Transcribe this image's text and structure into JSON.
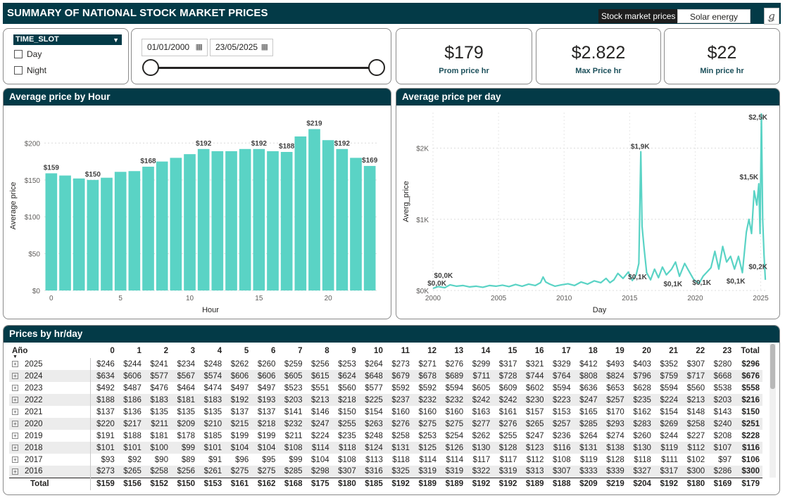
{
  "header": {
    "title": "SUMMARY OF NATIONAL STOCK MARKET PRICES",
    "nav_active": "Stock market prices",
    "nav_inactive": "Solar energy",
    "logo_glyph": "ǥ"
  },
  "slicer": {
    "title": "TIME_SLOT",
    "options": [
      "Day",
      "Night"
    ]
  },
  "date_range": {
    "start": "01/01/2000",
    "end": "23/05/2025"
  },
  "kpis": [
    {
      "value": "$179",
      "label": "Prom price hr"
    },
    {
      "value": "$2.822",
      "label": "Max Price hr"
    },
    {
      "value": "$22",
      "label": "Min price hr"
    }
  ],
  "colors": {
    "accent": "#5ad3c5",
    "header": "#033a47"
  },
  "charts": [
    {
      "panel_title": "Average price by Hour",
      "type": "bar",
      "xlabel": "Hour",
      "ylabel": "Average price",
      "x": [
        0,
        1,
        2,
        3,
        4,
        5,
        6,
        7,
        8,
        9,
        10,
        11,
        12,
        13,
        14,
        15,
        16,
        17,
        18,
        19,
        20,
        21,
        22,
        23
      ],
      "values": [
        159,
        156,
        152,
        150,
        153,
        161,
        162,
        168,
        175,
        180,
        185,
        192,
        189,
        189,
        192,
        192,
        189,
        188,
        209,
        219,
        204,
        192,
        180,
        169
      ],
      "data_labels": {
        "0": "$159",
        "3": "$150",
        "7": "$168",
        "11": "$192",
        "15": "$192",
        "17": "$188",
        "19": "$219",
        "21": "$192",
        "23": "$169"
      },
      "x_ticks": [
        "0",
        "5",
        "10",
        "15",
        "20"
      ],
      "y_ticks": [
        "$0",
        "$50",
        "$100",
        "$150",
        "$200"
      ],
      "ylim": [
        0,
        230
      ]
    },
    {
      "panel_title": "Average price per day",
      "type": "line",
      "xlabel": "Day",
      "ylabel": "Averg_price",
      "x_ticks": [
        "2000",
        "2005",
        "2010",
        "2015",
        "2020",
        "2025"
      ],
      "y_ticks": [
        "$0K",
        "$1K",
        "$2K"
      ],
      "xlim": [
        2000,
        2025.4
      ],
      "ylim": [
        0,
        2500
      ],
      "points": [
        [
          2000.0,
          30
        ],
        [
          2000.4,
          55
        ],
        [
          2000.9,
          40
        ],
        [
          2001.3,
          80
        ],
        [
          2001.8,
          60
        ],
        [
          2002.3,
          70
        ],
        [
          2002.8,
          50
        ],
        [
          2003.3,
          60
        ],
        [
          2003.8,
          45
        ],
        [
          2004.3,
          70
        ],
        [
          2004.8,
          60
        ],
        [
          2005.3,
          75
        ],
        [
          2005.8,
          55
        ],
        [
          2006.3,
          85
        ],
        [
          2006.8,
          60
        ],
        [
          2007.3,
          90
        ],
        [
          2007.8,
          70
        ],
        [
          2008.2,
          110
        ],
        [
          2008.4,
          190
        ],
        [
          2008.6,
          120
        ],
        [
          2008.9,
          90
        ],
        [
          2009.3,
          60
        ],
        [
          2009.8,
          80
        ],
        [
          2010.3,
          95
        ],
        [
          2010.8,
          70
        ],
        [
          2011.3,
          120
        ],
        [
          2011.8,
          90
        ],
        [
          2012.3,
          135
        ],
        [
          2012.8,
          110
        ],
        [
          2013.2,
          170
        ],
        [
          2013.5,
          110
        ],
        [
          2013.8,
          150
        ],
        [
          2014.1,
          240
        ],
        [
          2014.5,
          170
        ],
        [
          2014.9,
          260
        ],
        [
          2015.2,
          140
        ],
        [
          2015.5,
          220
        ],
        [
          2015.7,
          380
        ],
        [
          2015.85,
          1950
        ],
        [
          2015.95,
          900
        ],
        [
          2016.1,
          600
        ],
        [
          2016.3,
          250
        ],
        [
          2016.6,
          150
        ],
        [
          2016.9,
          300
        ],
        [
          2017.2,
          180
        ],
        [
          2017.5,
          330
        ],
        [
          2017.8,
          220
        ],
        [
          2018.2,
          300
        ],
        [
          2018.5,
          400
        ],
        [
          2018.8,
          200
        ],
        [
          2019.2,
          380
        ],
        [
          2019.5,
          280
        ],
        [
          2019.9,
          150
        ],
        [
          2020.3,
          100
        ],
        [
          2020.6,
          200
        ],
        [
          2020.9,
          260
        ],
        [
          2021.2,
          320
        ],
        [
          2021.5,
          550
        ],
        [
          2021.8,
          300
        ],
        [
          2022.1,
          620
        ],
        [
          2022.4,
          400
        ],
        [
          2022.7,
          480
        ],
        [
          2023.0,
          300
        ],
        [
          2023.3,
          480
        ],
        [
          2023.6,
          250
        ],
        [
          2023.9,
          820
        ],
        [
          2024.1,
          1000
        ],
        [
          2024.3,
          800
        ],
        [
          2024.5,
          1400
        ],
        [
          2024.7,
          1200
        ],
        [
          2024.85,
          1500
        ],
        [
          2024.95,
          800
        ],
        [
          2025.05,
          2480
        ],
        [
          2025.15,
          1000
        ],
        [
          2025.25,
          500
        ],
        [
          2025.35,
          150
        ]
      ],
      "annotations": [
        {
          "x": 2000.3,
          "y": 30,
          "text": "$0,0K"
        },
        {
          "x": 2000.8,
          "y": 140,
          "text": "$0,0K"
        },
        {
          "x": 2015.8,
          "y": 1950,
          "text": "$1,9K"
        },
        {
          "x": 2015.6,
          "y": 120,
          "text": "$0,1K"
        },
        {
          "x": 2018.3,
          "y": 20,
          "text": "$0,1K"
        },
        {
          "x": 2020.5,
          "y": 40,
          "text": "$0,1K"
        },
        {
          "x": 2023.1,
          "y": 60,
          "text": "$0,1K"
        },
        {
          "x": 2024.1,
          "y": 1520,
          "text": "$1,5K"
        },
        {
          "x": 2025.0,
          "y": 2360,
          "text": "$2,5K"
        },
        {
          "x": 2025.2,
          "y": 260,
          "text": "$0,2K"
        }
      ]
    }
  ],
  "table": {
    "panel_title": "Prices by hr/day",
    "row_header": "Año",
    "columns": [
      "0",
      "1",
      "2",
      "3",
      "4",
      "5",
      "6",
      "7",
      "8",
      "9",
      "10",
      "11",
      "12",
      "13",
      "14",
      "15",
      "16",
      "17",
      "18",
      "19",
      "20",
      "21",
      "22",
      "23",
      "Total"
    ],
    "rows": [
      {
        "year": "2025",
        "values": [
          "$246",
          "$244",
          "$241",
          "$234",
          "$248",
          "$262",
          "$260",
          "$259",
          "$256",
          "$253",
          "$264",
          "$273",
          "$271",
          "$276",
          "$299",
          "$317",
          "$321",
          "$329",
          "$412",
          "$493",
          "$403",
          "$352",
          "$307",
          "$280",
          "$296"
        ]
      },
      {
        "year": "2024",
        "values": [
          "$634",
          "$606",
          "$577",
          "$567",
          "$574",
          "$606",
          "$606",
          "$605",
          "$615",
          "$624",
          "$648",
          "$679",
          "$678",
          "$689",
          "$711",
          "$728",
          "$744",
          "$764",
          "$808",
          "$824",
          "$796",
          "$759",
          "$717",
          "$668",
          "$676"
        ]
      },
      {
        "year": "2023",
        "values": [
          "$492",
          "$487",
          "$476",
          "$464",
          "$474",
          "$497",
          "$497",
          "$523",
          "$551",
          "$560",
          "$577",
          "$592",
          "$592",
          "$594",
          "$605",
          "$609",
          "$602",
          "$594",
          "$636",
          "$653",
          "$628",
          "$594",
          "$560",
          "$538",
          "$558"
        ]
      },
      {
        "year": "2022",
        "values": [
          "$188",
          "$186",
          "$183",
          "$181",
          "$183",
          "$192",
          "$193",
          "$203",
          "$213",
          "$218",
          "$225",
          "$237",
          "$232",
          "$232",
          "$242",
          "$242",
          "$230",
          "$223",
          "$247",
          "$257",
          "$235",
          "$224",
          "$213",
          "$203",
          "$216"
        ]
      },
      {
        "year": "2021",
        "values": [
          "$137",
          "$136",
          "$135",
          "$135",
          "$135",
          "$137",
          "$137",
          "$141",
          "$146",
          "$150",
          "$154",
          "$160",
          "$160",
          "$160",
          "$163",
          "$161",
          "$157",
          "$153",
          "$165",
          "$170",
          "$162",
          "$154",
          "$148",
          "$143",
          "$150"
        ]
      },
      {
        "year": "2020",
        "values": [
          "$220",
          "$217",
          "$211",
          "$209",
          "$210",
          "$215",
          "$218",
          "$232",
          "$247",
          "$255",
          "$263",
          "$276",
          "$275",
          "$275",
          "$277",
          "$276",
          "$265",
          "$257",
          "$285",
          "$293",
          "$283",
          "$269",
          "$258",
          "$240",
          "$251"
        ]
      },
      {
        "year": "2019",
        "values": [
          "$191",
          "$188",
          "$181",
          "$178",
          "$185",
          "$199",
          "$199",
          "$211",
          "$224",
          "$235",
          "$248",
          "$258",
          "$253",
          "$254",
          "$262",
          "$255",
          "$247",
          "$236",
          "$264",
          "$274",
          "$260",
          "$244",
          "$227",
          "$208",
          "$228"
        ]
      },
      {
        "year": "2018",
        "values": [
          "$101",
          "$101",
          "$100",
          "$99",
          "$101",
          "$104",
          "$104",
          "$108",
          "$114",
          "$118",
          "$124",
          "$131",
          "$125",
          "$126",
          "$130",
          "$128",
          "$123",
          "$116",
          "$131",
          "$138",
          "$130",
          "$119",
          "$112",
          "$107",
          "$116"
        ]
      },
      {
        "year": "2017",
        "values": [
          "$93",
          "$92",
          "$90",
          "$89",
          "$91",
          "$96",
          "$95",
          "$99",
          "$104",
          "$108",
          "$113",
          "$118",
          "$114",
          "$114",
          "$117",
          "$117",
          "$112",
          "$108",
          "$119",
          "$128",
          "$118",
          "$111",
          "$102",
          "$97",
          "$106"
        ]
      },
      {
        "year": "2016",
        "values": [
          "$273",
          "$265",
          "$258",
          "$256",
          "$261",
          "$275",
          "$275",
          "$285",
          "$298",
          "$307",
          "$316",
          "$325",
          "$319",
          "$319",
          "$322",
          "$319",
          "$313",
          "$307",
          "$333",
          "$339",
          "$327",
          "$317",
          "$300",
          "$286",
          "$300"
        ]
      }
    ],
    "total_label": "Total",
    "totals": [
      "$159",
      "$156",
      "$152",
      "$150",
      "$153",
      "$161",
      "$162",
      "$168",
      "$175",
      "$180",
      "$185",
      "$192",
      "$189",
      "$189",
      "$192",
      "$192",
      "$189",
      "$188",
      "$209",
      "$219",
      "$204",
      "$192",
      "$180",
      "$169",
      "$179"
    ]
  }
}
